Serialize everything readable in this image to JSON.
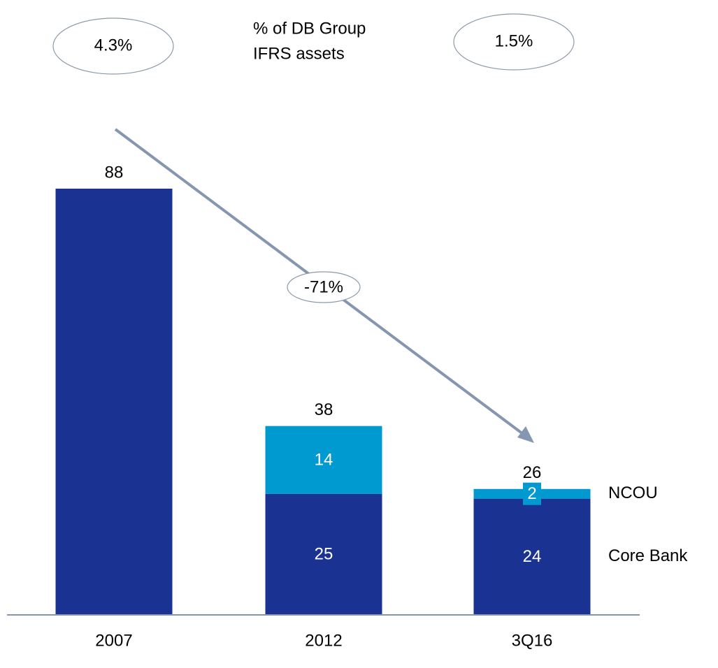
{
  "chart_data": {
    "type": "stacked_bar",
    "categories": [
      "2007",
      "2012",
      "3Q16"
    ],
    "series": [
      {
        "name": "Core Bank",
        "color": "#1a3393",
        "values": [
          88,
          25,
          24
        ]
      },
      {
        "name": "NCOU",
        "color": "#0099d0",
        "values": [
          null,
          14,
          2
        ]
      }
    ],
    "totals": [
      88,
      38,
      26
    ],
    "ratio_caption": [
      "% of DB Group",
      "IFRS assets"
    ],
    "ratios": [
      {
        "value": 4.3,
        "label": "4.3%"
      },
      {
        "value": 1.5,
        "label": "1.5%"
      }
    ],
    "change": {
      "value": -71,
      "label": "-71%"
    }
  }
}
